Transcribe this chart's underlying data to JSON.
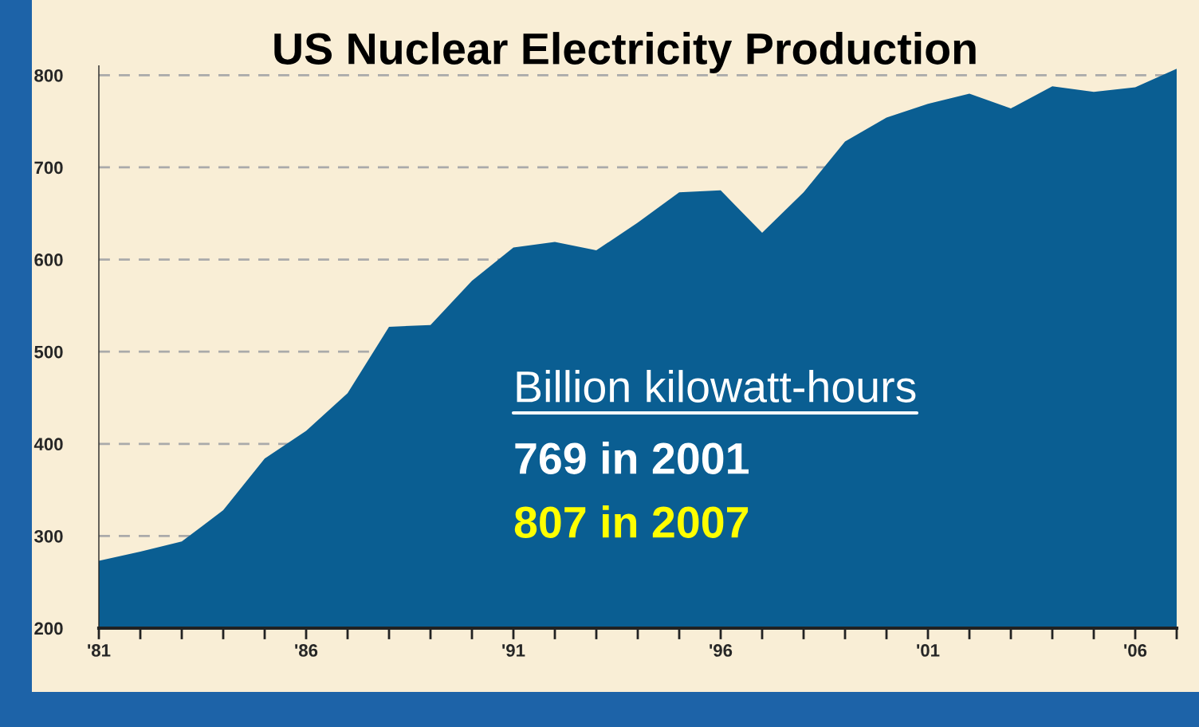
{
  "chart_data": {
    "type": "area",
    "title": "US Nuclear Electricity Production",
    "x": [
      1981,
      1982,
      1983,
      1984,
      1985,
      1986,
      1987,
      1988,
      1989,
      1990,
      1991,
      1992,
      1993,
      1994,
      1995,
      1996,
      1997,
      1998,
      1999,
      2000,
      2001,
      2002,
      2003,
      2004,
      2005,
      2006,
      2007
    ],
    "series": [
      {
        "color": "#0a5e92",
        "values": [
          273,
          283,
          294,
          328,
          384,
          414,
          455,
          527,
          529,
          577,
          613,
          619,
          610,
          640,
          673,
          675,
          629,
          673,
          728,
          754,
          769,
          780,
          764,
          788,
          782,
          787,
          807
        ]
      }
    ],
    "xlim": [
      1981,
      2007
    ],
    "xticks": [
      {
        "value": 1981,
        "label": "'81"
      },
      {
        "value": 1982,
        "label": null
      },
      {
        "value": 1983,
        "label": null
      },
      {
        "value": 1984,
        "label": null
      },
      {
        "value": 1985,
        "label": null
      },
      {
        "value": 1986,
        "label": "'86"
      },
      {
        "value": 1987,
        "label": null
      },
      {
        "value": 1988,
        "label": null
      },
      {
        "value": 1989,
        "label": null
      },
      {
        "value": 1990,
        "label": null
      },
      {
        "value": 1991,
        "label": "'91"
      },
      {
        "value": 1992,
        "label": null
      },
      {
        "value": 1993,
        "label": null
      },
      {
        "value": 1994,
        "label": null
      },
      {
        "value": 1995,
        "label": null
      },
      {
        "value": 1996,
        "label": "'96"
      },
      {
        "value": 1997,
        "label": null
      },
      {
        "value": 1998,
        "label": null
      },
      {
        "value": 1999,
        "label": null
      },
      {
        "value": 2000,
        "label": null
      },
      {
        "value": 2001,
        "label": "'01"
      },
      {
        "value": 2002,
        "label": null
      },
      {
        "value": 2003,
        "label": null
      },
      {
        "value": 2004,
        "label": null
      },
      {
        "value": 2005,
        "label": null
      },
      {
        "value": 2006,
        "label": "'06"
      },
      {
        "value": 2007,
        "label": null
      }
    ],
    "ylim": [
      200,
      810
    ],
    "yticks": [
      200,
      300,
      400,
      500,
      600,
      700,
      800
    ],
    "grid": "y",
    "annotations": [
      "Billion kilowatt-hours",
      "769 in 2001",
      "807 in 2007"
    ]
  }
}
